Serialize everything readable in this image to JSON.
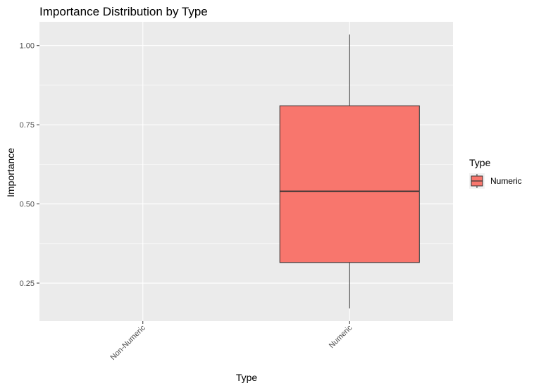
{
  "chart_data": {
    "type": "boxplot",
    "title": "Importance Distribution by Type",
    "xlabel": "Type",
    "ylabel": "Importance",
    "categories": [
      "Non-Numeric",
      "Numeric"
    ],
    "boxes": [
      {
        "category": "Numeric",
        "whisker_low": 0.17,
        "q1": 0.315,
        "median": 0.54,
        "q3": 0.81,
        "whisker_high": 1.035
      }
    ],
    "yticks": [
      0.25,
      0.5,
      0.75,
      1.0
    ],
    "ytick_labels": [
      "0.25",
      "0.50",
      "0.75",
      "1.00"
    ],
    "ylim": [
      0.13,
      1.075
    ],
    "grid": true,
    "legend": {
      "title": "Type",
      "placement": "right",
      "items": [
        {
          "label": "Numeric",
          "color": "#F8766D"
        }
      ]
    },
    "colors": {
      "panel_bg": "#EBEBEB",
      "grid": "#FFFFFF",
      "box_fill": "#F8766D",
      "box_stroke": "#333333",
      "tick_text": "#4D4D4D"
    }
  }
}
